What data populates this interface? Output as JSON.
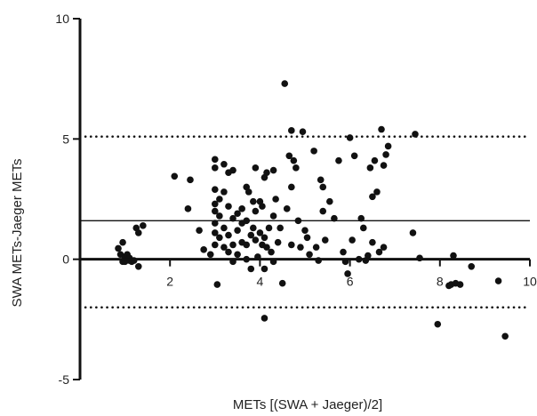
{
  "chart_data": {
    "type": "scatter",
    "title": "",
    "xlabel": "METs [(SWA + Jaeger)/2]",
    "ylabel": "SWA METs-Jaeger METs",
    "xlim": [
      0,
      10
    ],
    "ylim": [
      -5,
      10
    ],
    "xticks": [
      "2",
      "4",
      "6",
      "8",
      "10"
    ],
    "yticks": [
      "-5",
      "0",
      "5",
      "10"
    ],
    "grid": false,
    "reference_lines": [
      {
        "name": "mean difference",
        "y": 1.6,
        "style": "solid"
      },
      {
        "name": "upper limit of agreement",
        "y": 5.1,
        "style": "dotted"
      },
      {
        "name": "lower limit of agreement",
        "y": -2.0,
        "style": "dotted"
      }
    ],
    "series": [
      {
        "values": [
          [
            0.85,
            0.45
          ],
          [
            0.95,
            0.7
          ],
          [
            0.9,
            0.2
          ],
          [
            1.0,
            0.1
          ],
          [
            1.05,
            0.2
          ],
          [
            1.1,
            -0.05
          ],
          [
            0.95,
            -0.1
          ],
          [
            1.0,
            -0.1
          ],
          [
            1.1,
            0.05
          ],
          [
            1.15,
            -0.1
          ],
          [
            1.2,
            -0.05
          ],
          [
            1.25,
            1.3
          ],
          [
            1.3,
            1.1
          ],
          [
            1.4,
            1.4
          ],
          [
            1.3,
            -0.3
          ],
          [
            2.1,
            3.45
          ],
          [
            2.4,
            2.1
          ],
          [
            2.45,
            3.3
          ],
          [
            2.65,
            1.2
          ],
          [
            2.75,
            0.4
          ],
          [
            2.9,
            0.2
          ],
          [
            3.0,
            4.15
          ],
          [
            3.0,
            3.8
          ],
          [
            3.0,
            2.9
          ],
          [
            3.0,
            2.3
          ],
          [
            3.0,
            2.0
          ],
          [
            3.0,
            1.5
          ],
          [
            3.0,
            1.1
          ],
          [
            3.0,
            0.6
          ],
          [
            3.05,
            -1.05
          ],
          [
            3.1,
            2.5
          ],
          [
            3.1,
            1.8
          ],
          [
            3.1,
            0.9
          ],
          [
            3.2,
            3.95
          ],
          [
            3.2,
            2.8
          ],
          [
            3.2,
            1.3
          ],
          [
            3.2,
            0.5
          ],
          [
            3.3,
            3.6
          ],
          [
            3.3,
            2.2
          ],
          [
            3.3,
            1.0
          ],
          [
            3.3,
            0.3
          ],
          [
            3.4,
            3.7
          ],
          [
            3.4,
            1.7
          ],
          [
            3.4,
            0.6
          ],
          [
            3.4,
            -0.1
          ],
          [
            3.5,
            1.9
          ],
          [
            3.5,
            1.2
          ],
          [
            3.5,
            0.2
          ],
          [
            3.6,
            2.1
          ],
          [
            3.6,
            1.5
          ],
          [
            3.6,
            0.7
          ],
          [
            3.7,
            3.0
          ],
          [
            3.7,
            1.6
          ],
          [
            3.7,
            0.6
          ],
          [
            3.7,
            0.0
          ],
          [
            3.75,
            2.8
          ],
          [
            3.8,
            1.0
          ],
          [
            3.8,
            -0.4
          ],
          [
            3.85,
            2.4
          ],
          [
            3.85,
            1.3
          ],
          [
            3.9,
            3.8
          ],
          [
            3.9,
            2.0
          ],
          [
            3.9,
            0.8
          ],
          [
            3.95,
            0.1
          ],
          [
            4.0,
            2.4
          ],
          [
            4.0,
            1.1
          ],
          [
            4.05,
            2.2
          ],
          [
            4.05,
            0.6
          ],
          [
            4.1,
            3.4
          ],
          [
            4.1,
            0.9
          ],
          [
            4.1,
            -0.4
          ],
          [
            4.1,
            -2.45
          ],
          [
            4.15,
            3.6
          ],
          [
            4.15,
            0.5
          ],
          [
            4.2,
            1.3
          ],
          [
            4.25,
            0.3
          ],
          [
            4.3,
            3.7
          ],
          [
            4.3,
            1.8
          ],
          [
            4.3,
            -0.1
          ],
          [
            4.35,
            2.5
          ],
          [
            4.4,
            0.7
          ],
          [
            4.45,
            1.3
          ],
          [
            4.5,
            -1.0
          ],
          [
            4.55,
            7.3
          ],
          [
            4.6,
            2.1
          ],
          [
            4.65,
            4.3
          ],
          [
            4.7,
            5.35
          ],
          [
            4.7,
            3.0
          ],
          [
            4.7,
            0.6
          ],
          [
            4.75,
            4.1
          ],
          [
            4.8,
            3.8
          ],
          [
            4.85,
            1.6
          ],
          [
            4.9,
            0.5
          ],
          [
            4.95,
            5.3
          ],
          [
            5.0,
            1.2
          ],
          [
            5.05,
            0.9
          ],
          [
            5.1,
            0.2
          ],
          [
            5.2,
            4.5
          ],
          [
            5.25,
            0.5
          ],
          [
            5.3,
            -0.05
          ],
          [
            5.35,
            3.3
          ],
          [
            5.4,
            3.0
          ],
          [
            5.4,
            2.0
          ],
          [
            5.45,
            0.8
          ],
          [
            5.55,
            2.4
          ],
          [
            5.65,
            1.7
          ],
          [
            5.75,
            4.1
          ],
          [
            5.85,
            0.3
          ],
          [
            5.9,
            -0.1
          ],
          [
            5.95,
            -0.6
          ],
          [
            6.0,
            5.05
          ],
          [
            6.05,
            0.8
          ],
          [
            6.1,
            4.3
          ],
          [
            6.2,
            0.0
          ],
          [
            6.25,
            1.7
          ],
          [
            6.3,
            1.3
          ],
          [
            6.35,
            -0.05
          ],
          [
            6.4,
            0.15
          ],
          [
            6.45,
            3.8
          ],
          [
            6.5,
            2.6
          ],
          [
            6.5,
            0.7
          ],
          [
            6.55,
            4.1
          ],
          [
            6.6,
            2.8
          ],
          [
            6.65,
            0.3
          ],
          [
            6.7,
            5.4
          ],
          [
            6.75,
            3.9
          ],
          [
            6.75,
            0.5
          ],
          [
            6.8,
            4.35
          ],
          [
            6.85,
            4.7
          ],
          [
            7.4,
            1.1
          ],
          [
            7.45,
            5.2
          ],
          [
            7.55,
            0.05
          ],
          [
            7.95,
            -2.7
          ],
          [
            8.2,
            -1.1
          ],
          [
            8.25,
            -1.05
          ],
          [
            8.3,
            0.15
          ],
          [
            8.35,
            -1.0
          ],
          [
            8.45,
            -1.05
          ],
          [
            8.7,
            -0.3
          ],
          [
            9.3,
            -0.9
          ],
          [
            9.45,
            -3.2
          ]
        ]
      }
    ]
  }
}
